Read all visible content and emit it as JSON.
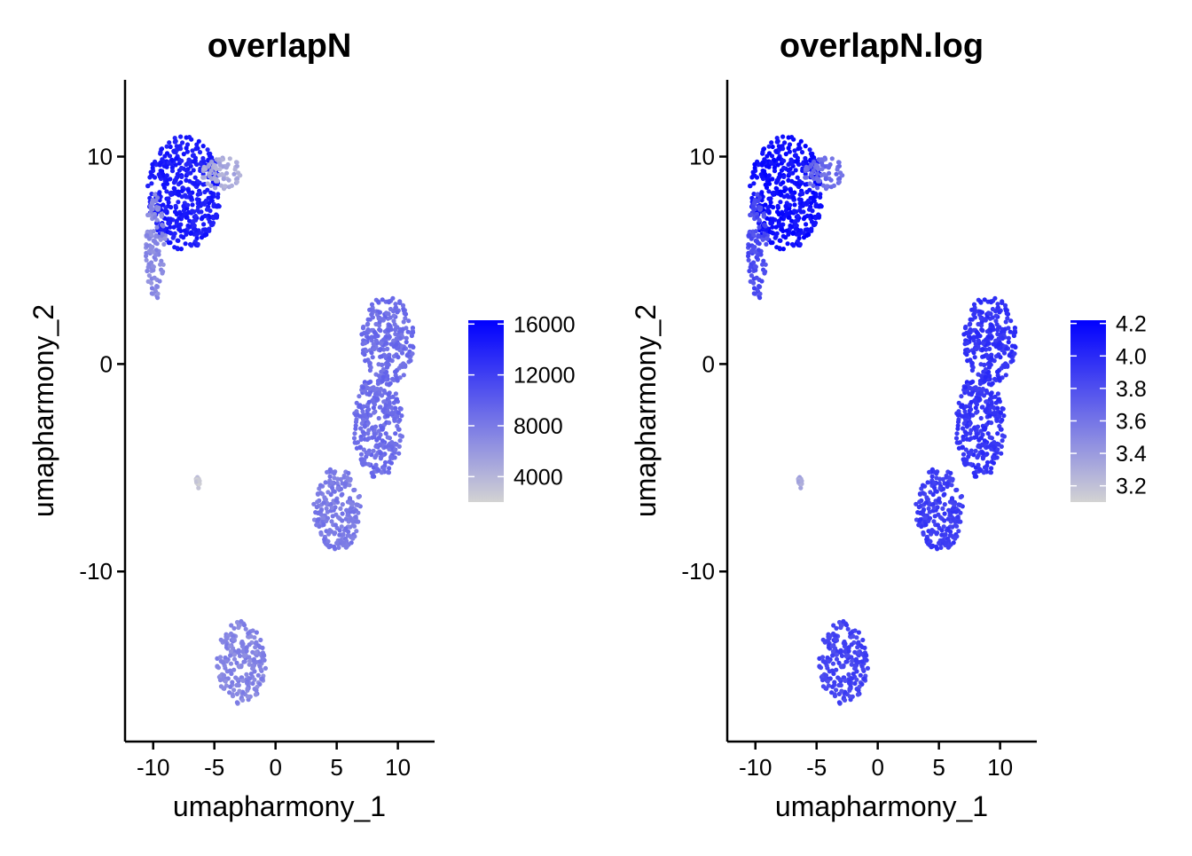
{
  "colors": {
    "low": "#d3d3d3",
    "high": "#0000ff"
  },
  "chart_data": [
    {
      "type": "scatter",
      "title": "overlapN",
      "xlabel": "umapharmony_1",
      "ylabel": "umapharmony_2",
      "xlim": [
        -12.3,
        13
      ],
      "ylim": [
        -18.2,
        13.7
      ],
      "x_ticks": [
        -10,
        -5,
        0,
        5,
        10
      ],
      "x_tick_labels": [
        "-10",
        "-5",
        "0",
        "5",
        "10"
      ],
      "y_ticks": [
        10,
        0,
        -10
      ],
      "y_tick_labels": [
        "10",
        "0",
        "-10"
      ],
      "legend": {
        "position": "right",
        "range": [
          2000,
          16300
        ],
        "ticks": [
          16000,
          12000,
          8000,
          4000
        ],
        "tick_labels": [
          "16000",
          "12000",
          "8000",
          "4000"
        ]
      },
      "clusters": [
        {
          "region": "top-left main",
          "x_range": [
            -10.5,
            -4.5
          ],
          "y_range": [
            5.5,
            11.0
          ],
          "value": 14500
        },
        {
          "region": "top-left tail",
          "x_range": [
            -10.6,
            -9.0
          ],
          "y_range": [
            3.1,
            8.2
          ],
          "value": 7000
        },
        {
          "region": "top-left arm",
          "x_range": [
            -6.0,
            -2.7
          ],
          "y_range": [
            8.4,
            10.0
          ],
          "value": 4800
        },
        {
          "region": "isolated small",
          "x_range": [
            -6.5,
            -6.2
          ],
          "y_range": [
            -6.0,
            -5.3
          ],
          "value": 3000
        },
        {
          "region": "right upper",
          "x_range": [
            7.0,
            11.3
          ],
          "y_range": [
            -1.0,
            3.3
          ],
          "value": 8800
        },
        {
          "region": "right middle",
          "x_range": [
            6.3,
            10.4
          ],
          "y_range": [
            -5.5,
            -0.5
          ],
          "value": 9000
        },
        {
          "region": "right lower",
          "x_range": [
            3.1,
            7.0
          ],
          "y_range": [
            -9.0,
            -5.0
          ],
          "value": 8000
        },
        {
          "region": "bottom cluster",
          "x_range": [
            -4.8,
            -0.8
          ],
          "y_range": [
            -16.4,
            -12.4
          ],
          "value": 7300
        }
      ]
    },
    {
      "type": "scatter",
      "title": "overlapN.log",
      "xlabel": "umapharmony_1",
      "ylabel": "umapharmony_2",
      "xlim": [
        -12.3,
        13
      ],
      "ylim": [
        -18.2,
        13.7
      ],
      "x_ticks": [
        -10,
        -5,
        0,
        5,
        10
      ],
      "x_tick_labels": [
        "-10",
        "-5",
        "0",
        "5",
        "10"
      ],
      "y_ticks": [
        10,
        0,
        -10
      ],
      "y_tick_labels": [
        "10",
        "0",
        "-10"
      ],
      "legend": {
        "position": "right",
        "range": [
          3.1,
          4.22
        ],
        "ticks": [
          4.2,
          4.0,
          3.8,
          3.6,
          3.4,
          3.2
        ],
        "tick_labels": [
          "4.2",
          "4.0",
          "3.8",
          "3.6",
          "3.4",
          "3.2"
        ]
      },
      "clusters": [
        {
          "region": "top-left main",
          "x_range": [
            -10.5,
            -4.5
          ],
          "y_range": [
            5.5,
            11.0
          ],
          "value": 4.15
        },
        {
          "region": "top-left tail",
          "x_range": [
            -10.6,
            -9.0
          ],
          "y_range": [
            3.1,
            8.2
          ],
          "value": 3.82
        },
        {
          "region": "top-left arm",
          "x_range": [
            -6.0,
            -2.7
          ],
          "y_range": [
            8.4,
            10.0
          ],
          "value": 3.65
        },
        {
          "region": "isolated small",
          "x_range": [
            -6.5,
            -6.2
          ],
          "y_range": [
            -6.0,
            -5.3
          ],
          "value": 3.35
        },
        {
          "region": "right upper",
          "x_range": [
            7.0,
            11.3
          ],
          "y_range": [
            -1.0,
            3.3
          ],
          "value": 3.95
        },
        {
          "region": "right middle",
          "x_range": [
            6.3,
            10.4
          ],
          "y_range": [
            -5.5,
            -0.5
          ],
          "value": 3.95
        },
        {
          "region": "right lower",
          "x_range": [
            3.1,
            7.0
          ],
          "y_range": [
            -9.0,
            -5.0
          ],
          "value": 3.9
        },
        {
          "region": "bottom cluster",
          "x_range": [
            -4.8,
            -0.8
          ],
          "y_range": [
            -16.4,
            -12.4
          ],
          "value": 3.86
        }
      ]
    }
  ]
}
